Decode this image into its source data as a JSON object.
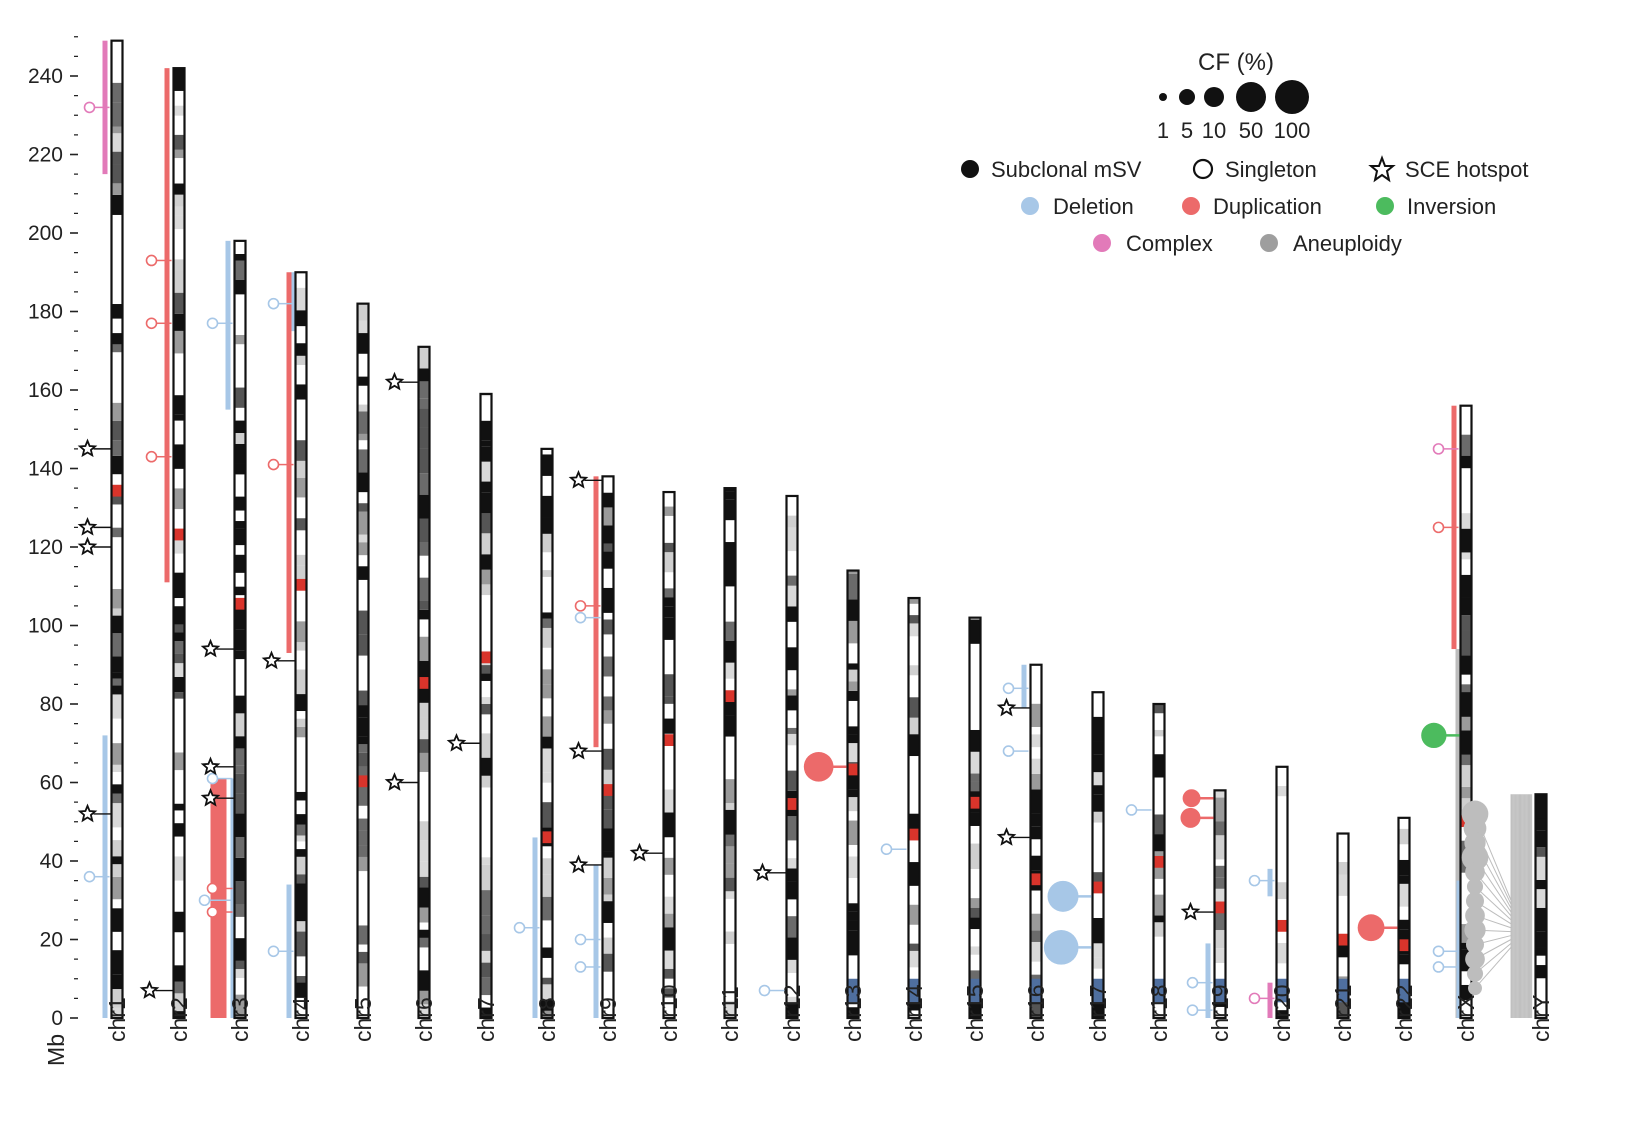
{
  "axis": {
    "title": "Mb",
    "ticks": [
      0,
      20,
      40,
      60,
      80,
      100,
      120,
      140,
      160,
      180,
      200,
      220,
      240
    ],
    "max_mb": 250
  },
  "legend": {
    "cf_title": "CF (%)",
    "cf_values": [
      "1",
      "5",
      "10",
      "50",
      "100"
    ],
    "subclonal_label": "Subclonal mSV",
    "singleton_label": "Singleton",
    "sce_label": "SCE hotspot",
    "deletion_label": "Deletion",
    "duplication_label": "Duplication",
    "inversion_label": "Inversion",
    "complex_label": "Complex",
    "aneuploidy_label": "Aneuploidy"
  },
  "colors": {
    "deletion": "#a7c7e7",
    "duplication": "#ec6a6a",
    "inversion": "#4cbb5e",
    "complex": "#e27ab9",
    "aneuploidy": "#bdbdbd",
    "band_red": "#d9342b",
    "band_blue": "#4f6f9f"
  },
  "chart_data": {
    "type": "ideogram",
    "ylabel": "Mb",
    "ylim": [
      0,
      250
    ],
    "chromosomes": [
      {
        "name": "chr1",
        "length": 249,
        "segments": [
          {
            "type": "complex",
            "start": 215,
            "end": 249
          },
          {
            "type": "deletion",
            "start": 0,
            "end": 72
          }
        ],
        "singletons": [
          {
            "type": "complex",
            "pos": 232
          },
          {
            "type": "deletion",
            "pos": 36
          }
        ],
        "subclonal": [],
        "sce": [
          145,
          125,
          120,
          52
        ]
      },
      {
        "name": "chr2",
        "length": 242,
        "segments": [
          {
            "type": "duplication",
            "start": 111,
            "end": 242
          }
        ],
        "singletons": [
          {
            "type": "duplication",
            "pos": 193
          },
          {
            "type": "duplication",
            "pos": 177
          },
          {
            "type": "duplication",
            "pos": 143
          }
        ],
        "subclonal": [],
        "sce": [
          7
        ]
      },
      {
        "name": "chr3",
        "length": 198,
        "segments": [
          {
            "type": "deletion",
            "start": 155,
            "end": 198
          },
          {
            "type": "duplication",
            "start": 0,
            "end": 61
          },
          {
            "type": "deletion",
            "start": 0,
            "end": 61
          }
        ],
        "singletons": [
          {
            "type": "deletion",
            "pos": 177
          },
          {
            "type": "deletion",
            "pos": 61
          },
          {
            "type": "duplication",
            "pos": 33
          },
          {
            "type": "deletion",
            "pos": 30
          },
          {
            "type": "duplication",
            "pos": 27
          }
        ],
        "subclonal": [],
        "sce": [
          94,
          64,
          56
        ]
      },
      {
        "name": "chr4",
        "length": 190,
        "segments": [
          {
            "type": "deletion",
            "start": 175,
            "end": 190
          },
          {
            "type": "duplication",
            "start": 93,
            "end": 190
          },
          {
            "type": "deletion",
            "start": 0,
            "end": 34
          }
        ],
        "singletons": [
          {
            "type": "deletion",
            "pos": 182
          },
          {
            "type": "duplication",
            "pos": 141
          },
          {
            "type": "deletion",
            "pos": 17
          }
        ],
        "subclonal": [],
        "sce": [
          91
        ]
      },
      {
        "name": "chr5",
        "length": 182,
        "segments": [],
        "singletons": [],
        "subclonal": [],
        "sce": []
      },
      {
        "name": "chr6",
        "length": 171,
        "segments": [],
        "singletons": [],
        "subclonal": [],
        "sce": [
          162,
          60
        ]
      },
      {
        "name": "chr7",
        "length": 159,
        "segments": [],
        "singletons": [],
        "subclonal": [],
        "sce": [
          70
        ]
      },
      {
        "name": "chr8",
        "length": 145,
        "segments": [
          {
            "type": "deletion",
            "start": 0,
            "end": 46
          }
        ],
        "singletons": [
          {
            "type": "deletion",
            "pos": 23
          }
        ],
        "subclonal": [],
        "sce": []
      },
      {
        "name": "chr9",
        "length": 138,
        "segments": [
          {
            "type": "duplication",
            "start": 69,
            "end": 138
          },
          {
            "type": "deletion",
            "start": 0,
            "end": 39
          },
          {
            "type": "deletion",
            "start": 0,
            "end": 26
          }
        ],
        "singletons": [
          {
            "type": "duplication",
            "pos": 105
          },
          {
            "type": "deletion",
            "pos": 102
          },
          {
            "type": "deletion",
            "pos": 20
          },
          {
            "type": "deletion",
            "pos": 13
          }
        ],
        "subclonal": [],
        "sce": [
          137,
          68,
          39
        ]
      },
      {
        "name": "chr10",
        "length": 134,
        "segments": [],
        "singletons": [],
        "subclonal": [],
        "sce": [
          42
        ]
      },
      {
        "name": "chr11",
        "length": 135,
        "segments": [],
        "singletons": [],
        "subclonal": [],
        "sce": []
      },
      {
        "name": "chr12",
        "length": 133,
        "segments": [],
        "singletons": [
          {
            "type": "deletion",
            "pos": 7
          }
        ],
        "subclonal": [],
        "sce": [
          37
        ]
      },
      {
        "name": "chr13",
        "length": 114,
        "segments": [],
        "singletons": [],
        "subclonal": [
          {
            "type": "duplication",
            "pos": 64,
            "cf": 55
          }
        ],
        "sce": []
      },
      {
        "name": "chr14",
        "length": 107,
        "segments": [],
        "singletons": [
          {
            "type": "deletion",
            "pos": 43
          }
        ],
        "subclonal": [],
        "sce": []
      },
      {
        "name": "chr15",
        "length": 102,
        "segments": [],
        "singletons": [],
        "subclonal": [],
        "sce": []
      },
      {
        "name": "chr16",
        "length": 90,
        "segments": [
          {
            "type": "deletion",
            "start": 79,
            "end": 90
          }
        ],
        "singletons": [
          {
            "type": "deletion",
            "pos": 84
          },
          {
            "type": "deletion",
            "pos": 68
          }
        ],
        "subclonal": [],
        "sce": [
          79,
          46
        ]
      },
      {
        "name": "chr17",
        "length": 83,
        "segments": [],
        "singletons": [],
        "subclonal": [
          {
            "type": "deletion",
            "pos": 31,
            "cf": 60
          },
          {
            "type": "deletion",
            "pos": 18,
            "cf": 75
          }
        ],
        "sce": []
      },
      {
        "name": "chr18",
        "length": 80,
        "segments": [],
        "singletons": [
          {
            "type": "deletion",
            "pos": 53
          }
        ],
        "subclonal": [],
        "sce": []
      },
      {
        "name": "chr19",
        "length": 58,
        "segments": [
          {
            "type": "deletion",
            "start": 0,
            "end": 19
          }
        ],
        "singletons": [
          {
            "type": "deletion",
            "pos": 9
          },
          {
            "type": "deletion",
            "pos": 2
          }
        ],
        "subclonal": [
          {
            "type": "duplication",
            "pos": 56,
            "cf": 20
          },
          {
            "type": "duplication",
            "pos": 51,
            "cf": 25
          }
        ],
        "sce": [
          27
        ]
      },
      {
        "name": "chr20",
        "length": 64,
        "segments": [
          {
            "type": "deletion",
            "start": 31,
            "end": 38
          },
          {
            "type": "complex",
            "start": 0,
            "end": 9
          }
        ],
        "singletons": [
          {
            "type": "deletion",
            "pos": 35
          },
          {
            "type": "complex",
            "pos": 5
          }
        ],
        "subclonal": [],
        "sce": []
      },
      {
        "name": "chr21",
        "length": 47,
        "segments": [],
        "singletons": [],
        "subclonal": [],
        "sce": []
      },
      {
        "name": "chr22",
        "length": 51,
        "segments": [],
        "singletons": [],
        "subclonal": [
          {
            "type": "duplication",
            "pos": 23,
            "cf": 45
          }
        ],
        "sce": []
      },
      {
        "name": "chrX",
        "length": 156,
        "segments": [
          {
            "type": "duplication",
            "start": 94,
            "end": 156
          },
          {
            "type": "aneuploidy",
            "start": 0,
            "end": 94
          },
          {
            "type": "deletion",
            "start": 0,
            "end": 35
          },
          {
            "type": "deletion",
            "start": 0,
            "end": 25
          }
        ],
        "singletons": [
          {
            "type": "complex",
            "pos": 145
          },
          {
            "type": "duplication",
            "pos": 125
          },
          {
            "type": "deletion",
            "pos": 17
          },
          {
            "type": "deletion",
            "pos": 13
          }
        ],
        "subclonal": [
          {
            "type": "inversion",
            "pos": 72,
            "cf": 40
          }
        ],
        "sce": []
      },
      {
        "name": "chrY",
        "length": 57,
        "segments": [],
        "singletons": [],
        "subclonal": [],
        "sce": []
      }
    ],
    "chrY_aneuploidy": {
      "cf_values": [
        55,
        40,
        35,
        55,
        30,
        20,
        25,
        30,
        35,
        25,
        30,
        20,
        15
      ]
    }
  }
}
